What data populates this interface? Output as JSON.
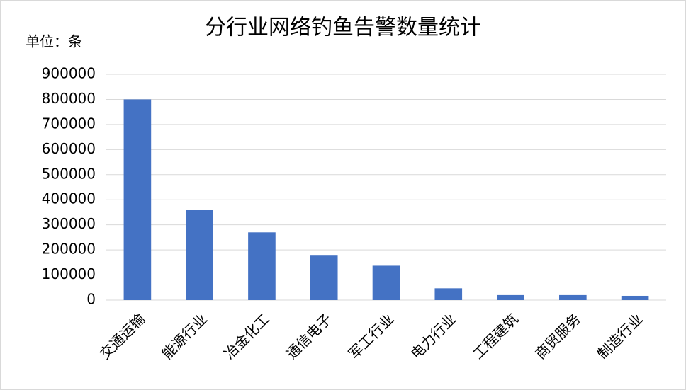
{
  "chart_data": {
    "type": "bar",
    "title": "分行业网络钓鱼告警数量统计",
    "ylabel": "单位：条",
    "categories": [
      "交通运输",
      "能源行业",
      "冶金化工",
      "通信电子",
      "军工行业",
      "电力行业",
      "工程建筑",
      "商贸服务",
      "制造行业"
    ],
    "values": [
      800000,
      360000,
      270000,
      180000,
      137000,
      47000,
      20000,
      20000,
      17000
    ],
    "color": "#4472c4",
    "ylim": [
      0,
      900000
    ],
    "yticks": [
      0,
      100000,
      200000,
      300000,
      400000,
      500000,
      600000,
      700000,
      800000,
      900000
    ],
    "grid": true
  }
}
